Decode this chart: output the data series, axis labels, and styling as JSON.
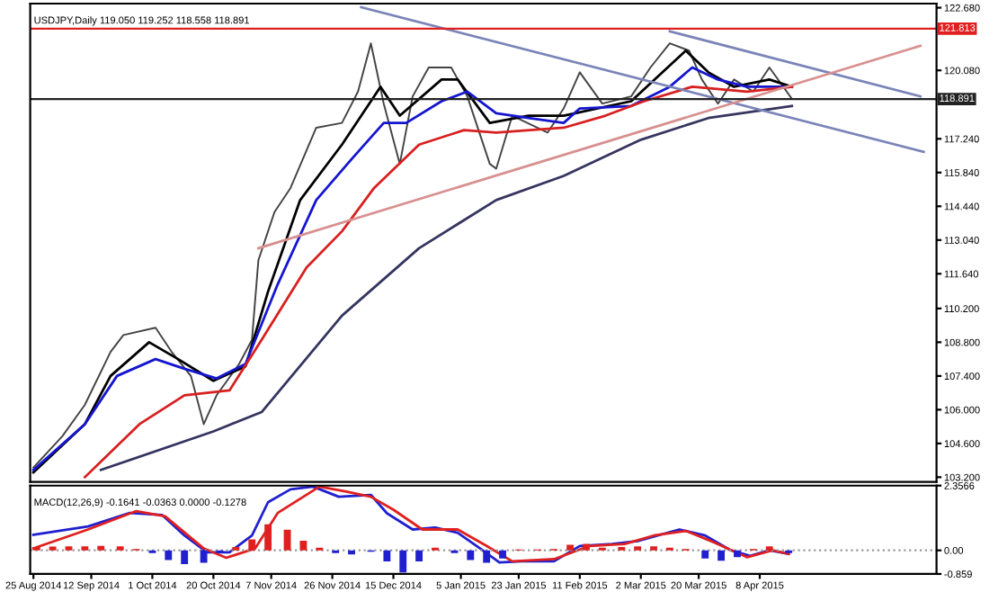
{
  "chart_data": [
    {
      "type": "line",
      "title": "USDJPY,Daily 119.050 119.252 118.558 118.891",
      "xlim": [
        "2014-08-24",
        "2015-06-02"
      ],
      "ylim": [
        103.0,
        122.85
      ],
      "yticks": [
        {
          "value": 122.68,
          "label": "122.680"
        },
        {
          "value": 120.08,
          "label": "120.080"
        },
        {
          "value": 117.24,
          "label": "117.240"
        },
        {
          "value": 115.84,
          "label": "115.840"
        },
        {
          "value": 114.44,
          "label": "114.440"
        },
        {
          "value": 113.04,
          "label": "113.040"
        },
        {
          "value": 111.64,
          "label": "111.640"
        },
        {
          "value": 110.2,
          "label": "110.200"
        },
        {
          "value": 108.8,
          "label": "108.800"
        },
        {
          "value": 107.4,
          "label": "107.400"
        },
        {
          "value": 106.0,
          "label": "106.000"
        },
        {
          "value": 104.6,
          "label": "104.600"
        },
        {
          "value": 103.2,
          "label": "103.200"
        }
      ],
      "tick_labels": "y",
      "legend": false,
      "grid": false,
      "ref_lines": [
        {
          "axis": "y",
          "value": 121.813,
          "label": "121.813",
          "color": "#e02020"
        },
        {
          "axis": "y",
          "value": 118.891,
          "label": "118.891",
          "color": "#222222"
        }
      ],
      "series": [
        {
          "color": "#444444",
          "x": [
            "2014-08-25",
            "2014-09-03",
            "2014-09-10",
            "2014-09-18",
            "2014-09-22",
            "2014-10-02",
            "2014-10-07",
            "2014-10-13",
            "2014-10-17",
            "2014-10-21",
            "2014-10-28",
            "2014-11-01",
            "2014-11-03",
            "2014-11-08",
            "2014-11-13",
            "2014-11-21",
            "2014-11-29",
            "2014-12-04",
            "2014-12-08",
            "2014-12-12",
            "2014-12-17",
            "2014-12-21",
            "2014-12-26",
            "2015-01-02",
            "2015-01-07",
            "2015-01-14",
            "2015-01-16",
            "2015-01-21",
            "2015-02-01",
            "2015-02-06",
            "2015-02-11",
            "2015-02-18",
            "2015-02-27",
            "2015-03-05",
            "2015-03-11",
            "2015-03-17",
            "2015-03-21",
            "2015-03-26",
            "2015-03-31",
            "2015-04-06",
            "2015-04-11",
            "2015-04-18"
          ],
          "values": [
            103.6,
            104.9,
            106.2,
            108.4,
            109.1,
            109.4,
            108.4,
            107.4,
            105.4,
            106.6,
            107.9,
            108.9,
            112.2,
            114.2,
            115.2,
            117.7,
            117.9,
            119.2,
            121.2,
            118.7,
            116.2,
            119.0,
            120.2,
            120.2,
            119.0,
            116.2,
            116.0,
            118.2,
            117.5,
            118.5,
            120.0,
            118.7,
            119.0,
            120.2,
            121.2,
            120.9,
            119.7,
            118.7,
            119.7,
            119.2,
            120.2,
            118.9
          ]
        },
        {
          "color": "#000000",
          "x": [
            "2014-08-25",
            "2014-09-10",
            "2014-09-18",
            "2014-09-30",
            "2014-10-09",
            "2014-10-20",
            "2014-10-30",
            "2014-11-06",
            "2014-11-16",
            "2014-11-29",
            "2014-12-11",
            "2014-12-17",
            "2014-12-30",
            "2015-01-04",
            "2015-01-14",
            "2015-01-26",
            "2015-02-06",
            "2015-02-27",
            "2015-03-16",
            "2015-03-23",
            "2015-03-31",
            "2015-04-11",
            "2015-04-18"
          ],
          "values": [
            103.4,
            105.4,
            107.4,
            108.8,
            108.1,
            107.2,
            107.8,
            110.9,
            114.7,
            117.0,
            119.4,
            118.2,
            119.7,
            119.7,
            117.9,
            118.2,
            118.2,
            118.8,
            120.9,
            120.0,
            119.4,
            119.7,
            119.4
          ]
        },
        {
          "color": "#1515d0",
          "x": [
            "2014-08-25",
            "2014-09-10",
            "2014-09-20",
            "2014-10-02",
            "2014-10-11",
            "2014-10-21",
            "2014-10-30",
            "2014-11-09",
            "2014-11-21",
            "2014-12-02",
            "2014-12-12",
            "2014-12-19",
            "2014-12-30",
            "2015-01-07",
            "2015-01-16",
            "2015-01-26",
            "2015-02-06",
            "2015-02-11",
            "2015-02-27",
            "2015-03-11",
            "2015-03-18",
            "2015-03-26",
            "2015-04-04",
            "2015-04-18"
          ],
          "values": [
            103.5,
            105.4,
            107.4,
            108.1,
            107.7,
            107.3,
            107.9,
            111.2,
            114.7,
            116.4,
            117.9,
            117.9,
            118.8,
            119.2,
            118.3,
            118.1,
            117.9,
            118.5,
            118.6,
            119.4,
            120.2,
            119.7,
            119.4,
            119.4
          ]
        },
        {
          "color": "#d82020",
          "x": [
            "2014-09-10",
            "2014-09-27",
            "2014-10-11",
            "2014-10-25",
            "2014-11-04",
            "2014-11-18",
            "2014-11-29",
            "2014-12-09",
            "2014-12-23",
            "2015-01-06",
            "2015-01-16",
            "2015-02-06",
            "2015-02-19",
            "2015-03-03",
            "2015-03-18",
            "2015-04-04",
            "2015-04-18"
          ],
          "values": [
            103.2,
            105.4,
            106.6,
            106.8,
            108.9,
            111.9,
            113.4,
            115.2,
            117.0,
            117.6,
            117.5,
            117.7,
            118.2,
            118.8,
            119.4,
            119.2,
            119.4
          ]
        },
        {
          "color": "#353560",
          "x": [
            "2014-09-15",
            "2014-10-20",
            "2014-11-04",
            "2014-11-29",
            "2014-12-23",
            "2015-01-16",
            "2015-02-06",
            "2015-03-02",
            "2015-03-23",
            "2015-04-18"
          ],
          "values": [
            103.5,
            105.1,
            105.9,
            109.9,
            112.7,
            114.7,
            115.7,
            117.2,
            118.1,
            118.6
          ]
        },
        {
          "color": "#7a84b8",
          "x": [
            "2014-12-05",
            "2015-05-29"
          ],
          "values": [
            122.7,
            116.7
          ]
        },
        {
          "color": "#7a84b8",
          "x": [
            "2015-03-11",
            "2015-05-28"
          ],
          "values": [
            121.7,
            119.0
          ]
        },
        {
          "color": "#d89090",
          "x": [
            "2014-11-03",
            "2015-05-28"
          ],
          "values": [
            112.7,
            121.1
          ]
        }
      ]
    },
    {
      "type": "line",
      "title": "MACD(12,26,9) -0.1641 -0.0363 0.0000 -0.1278",
      "xlim": [
        "2014-08-24",
        "2015-06-02"
      ],
      "xticks": [
        {
          "value": "2014-08-25",
          "label": "25 Aug 2014"
        },
        {
          "value": "2014-09-12",
          "label": "12 Sep 2014"
        },
        {
          "value": "2014-10-01",
          "label": "1 Oct 2014"
        },
        {
          "value": "2014-10-20",
          "label": "20 Oct 2014"
        },
        {
          "value": "2014-11-07",
          "label": "7 Nov 2014"
        },
        {
          "value": "2014-11-26",
          "label": "26 Nov 2014"
        },
        {
          "value": "2014-12-15",
          "label": "15 Dec 2014"
        },
        {
          "value": "2015-01-05",
          "label": "5 Jan 2015"
        },
        {
          "value": "2015-01-23",
          "label": "23 Jan 2015"
        },
        {
          "value": "2015-02-11",
          "label": "11 Feb 2015"
        },
        {
          "value": "2015-03-02",
          "label": "2 Mar 2015"
        },
        {
          "value": "2015-03-20",
          "label": "20 Mar 2015"
        },
        {
          "value": "2015-04-08",
          "label": "8 Apr 2015"
        }
      ],
      "ylim": [
        -0.859,
        2.3566
      ],
      "yticks": [
        2.3566,
        {
          "value": 0,
          "label": "0.00"
        },
        -0.859
      ],
      "legend": false,
      "grid": false,
      "ref_lines": [
        {
          "axis": "y",
          "value": 0,
          "color": "#999999",
          "line_style": "dotted"
        }
      ],
      "series": [
        {
          "type": "bar",
          "x": [
            "2014-08-26",
            "2014-08-31",
            "2014-09-05",
            "2014-09-10",
            "2014-09-15",
            "2014-09-21",
            "2014-09-26",
            "2014-10-01",
            "2014-10-06",
            "2014-10-11",
            "2014-10-17",
            "2014-10-22",
            "2014-10-27",
            "2014-11-01",
            "2014-11-06",
            "2014-11-12",
            "2014-11-17",
            "2014-11-22",
            "2014-11-27",
            "2014-12-02",
            "2014-12-08",
            "2014-12-13",
            "2014-12-18",
            "2014-12-23",
            "2014-12-28",
            "2015-01-03",
            "2015-01-08",
            "2015-01-13",
            "2015-01-18",
            "2015-01-23",
            "2015-01-29",
            "2015-02-03",
            "2015-02-08",
            "2015-02-13",
            "2015-02-18",
            "2015-02-24",
            "2015-03-01",
            "2015-03-06",
            "2015-03-11",
            "2015-03-16",
            "2015-03-22",
            "2015-03-27",
            "2015-04-01",
            "2015-04-06",
            "2015-04-11",
            "2015-04-17"
          ],
          "values": [
            0.12,
            0.14,
            0.15,
            0.15,
            0.16,
            0.15,
            0.05,
            -0.1,
            -0.35,
            -0.5,
            -0.45,
            -0.1,
            0.12,
            0.4,
            0.95,
            0.75,
            0.35,
            0.1,
            -0.1,
            -0.15,
            -0.05,
            -0.4,
            -0.8,
            -0.4,
            0.1,
            -0.1,
            -0.35,
            -0.45,
            -0.3,
            0.03,
            0.03,
            0.05,
            0.2,
            0.24,
            0.1,
            0.12,
            0.15,
            0.15,
            0.1,
            0.05,
            -0.3,
            -0.38,
            -0.25,
            0.05,
            0.15,
            -0.1
          ],
          "colors": [
            "#e02020",
            "#e02020",
            "#e02020",
            "#e02020",
            "#e02020",
            "#e02020",
            "#e02020",
            "#2020d0",
            "#2020d0",
            "#2020d0",
            "#2020d0",
            "#2020d0",
            "#e02020",
            "#e02020",
            "#e02020",
            "#e02020",
            "#e02020",
            "#e02020",
            "#2020d0",
            "#2020d0",
            "#2020d0",
            "#2020d0",
            "#2020d0",
            "#2020d0",
            "#e02020",
            "#2020d0",
            "#2020d0",
            "#2020d0",
            "#2020d0",
            "#e02020",
            "#e02020",
            "#e02020",
            "#e02020",
            "#e02020",
            "#e02020",
            "#e02020",
            "#e02020",
            "#e02020",
            "#e02020",
            "#e02020",
            "#2020d0",
            "#2020d0",
            "#2020d0",
            "#e02020",
            "#e02020",
            "#2020d0"
          ]
        },
        {
          "color": "#2020d0",
          "x": [
            "2014-08-25",
            "2014-09-11",
            "2014-09-24",
            "2014-10-04",
            "2014-10-11",
            "2014-10-18",
            "2014-10-25",
            "2014-11-01",
            "2014-11-06",
            "2014-11-13",
            "2014-11-20",
            "2014-11-28",
            "2014-12-08",
            "2014-12-13",
            "2014-12-21",
            "2014-12-28",
            "2015-01-04",
            "2015-01-11",
            "2015-01-17",
            "2015-01-24",
            "2015-02-03",
            "2015-02-11",
            "2015-02-21",
            "2015-03-01",
            "2015-03-14",
            "2015-03-22",
            "2015-03-30",
            "2015-04-05",
            "2015-04-11",
            "2015-04-17"
          ],
          "values": [
            0.57,
            0.87,
            1.36,
            1.29,
            0.54,
            -0.07,
            -0.07,
            0.54,
            1.75,
            2.22,
            2.32,
            1.95,
            2.02,
            1.35,
            0.76,
            0.83,
            0.64,
            0.07,
            -0.44,
            -0.4,
            -0.4,
            0.16,
            0.23,
            0.34,
            0.76,
            0.54,
            0.0,
            -0.2,
            0.0,
            -0.13
          ]
        },
        {
          "color": "#e02020",
          "x": [
            "2014-08-25",
            "2014-09-11",
            "2014-09-26",
            "2014-10-05",
            "2014-10-17",
            "2014-10-24",
            "2014-11-02",
            "2014-11-09",
            "2014-11-22",
            "2014-11-30",
            "2014-12-08",
            "2014-12-15",
            "2014-12-24",
            "2015-01-04",
            "2015-01-13",
            "2015-01-21",
            "2015-02-03",
            "2015-02-14",
            "2015-02-25",
            "2015-03-06",
            "2015-03-16",
            "2015-03-25",
            "2015-04-04",
            "2015-04-12",
            "2015-04-17"
          ],
          "values": [
            0.07,
            0.76,
            1.43,
            1.24,
            0.07,
            -0.27,
            0.07,
            1.36,
            2.32,
            2.15,
            1.95,
            1.48,
            0.76,
            0.76,
            0.16,
            -0.4,
            -0.32,
            0.16,
            0.23,
            0.54,
            0.71,
            0.28,
            -0.25,
            0.0,
            -0.13
          ]
        }
      ]
    }
  ]
}
